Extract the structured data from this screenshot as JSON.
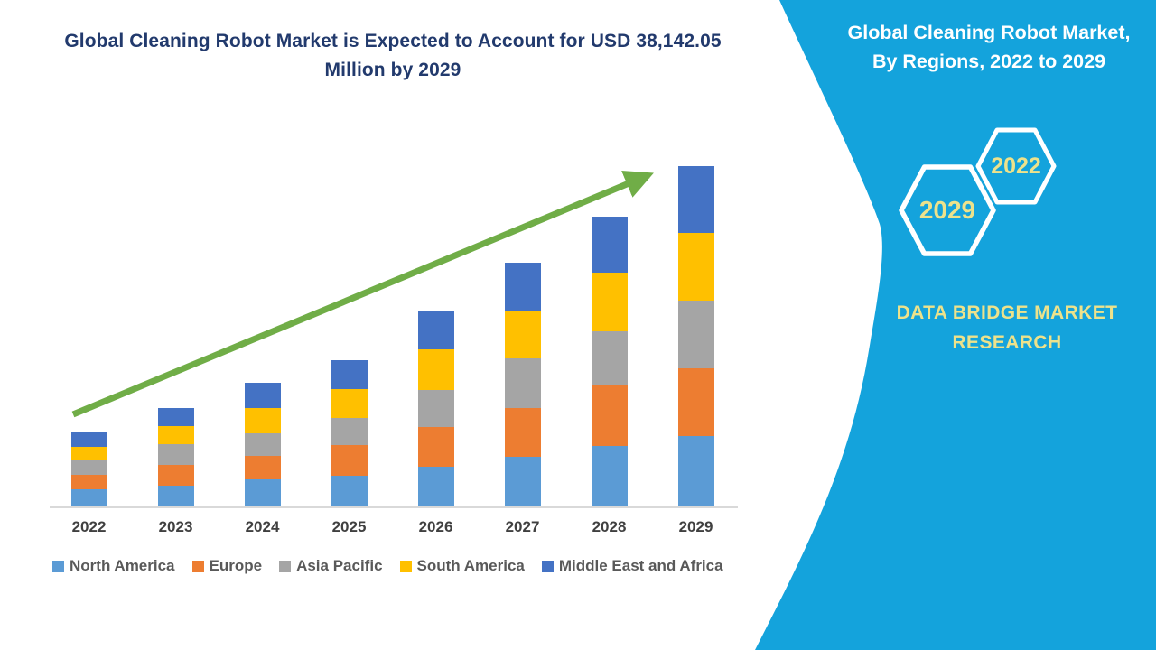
{
  "main_title": "Global Cleaning Robot Market is Expected to Account for USD 38,142.05 Million by 2029",
  "panel": {
    "title_line1": "Global Cleaning Robot Market,",
    "title_line2": "By Regions, 2022 to 2029",
    "hexagon_front_label": "2029",
    "hexagon_back_label": "2022",
    "brand_line1": "DATA BRIDGE MARKET",
    "brand_line2": "RESEARCH",
    "background_color": "#14A3DC",
    "title_color": "#FFFFFF",
    "accent_text_color": "#EDE28B"
  },
  "chart_data": {
    "type": "bar",
    "stacked": true,
    "title": "Global Cleaning Robot Market, By Regions, 2022 to 2029",
    "unit": "USD Million",
    "categories": [
      "2022",
      "2023",
      "2024",
      "2025",
      "2026",
      "2027",
      "2028",
      "2029"
    ],
    "series": [
      {
        "name": "North America",
        "color": "#5B9BD5",
        "values": [
          1826,
          2232,
          2942,
          3347,
          4362,
          5478,
          6695,
          7811
        ]
      },
      {
        "name": "Europe",
        "color": "#ED7D31",
        "values": [
          1623,
          2333,
          2637,
          3449,
          4463,
          5478,
          6796,
          7608
        ]
      },
      {
        "name": "Asia Pacific",
        "color": "#A5A5A5",
        "values": [
          1623,
          2333,
          2536,
          3043,
          4159,
          5579,
          6086,
          7608
        ]
      },
      {
        "name": "South America",
        "color": "#FFC000",
        "values": [
          1522,
          2029,
          2840,
          3246,
          4565,
          5275,
          6594,
          7608
        ]
      },
      {
        "name": "Middle East and Africa",
        "color": "#4472C4",
        "values": [
          1623,
          2029,
          2840,
          3246,
          4260,
          5478,
          6290,
          7507
        ]
      }
    ],
    "totals": [
      8217,
      10956,
      13795,
      16331,
      21809,
      27288,
      32461,
      38142.05
    ],
    "ylim": [
      0,
      38142.05
    ],
    "grid": false,
    "legend_position": "bottom",
    "axis_line_color": "#D9D9D9",
    "trend_arrow_color": "#70AD47"
  }
}
